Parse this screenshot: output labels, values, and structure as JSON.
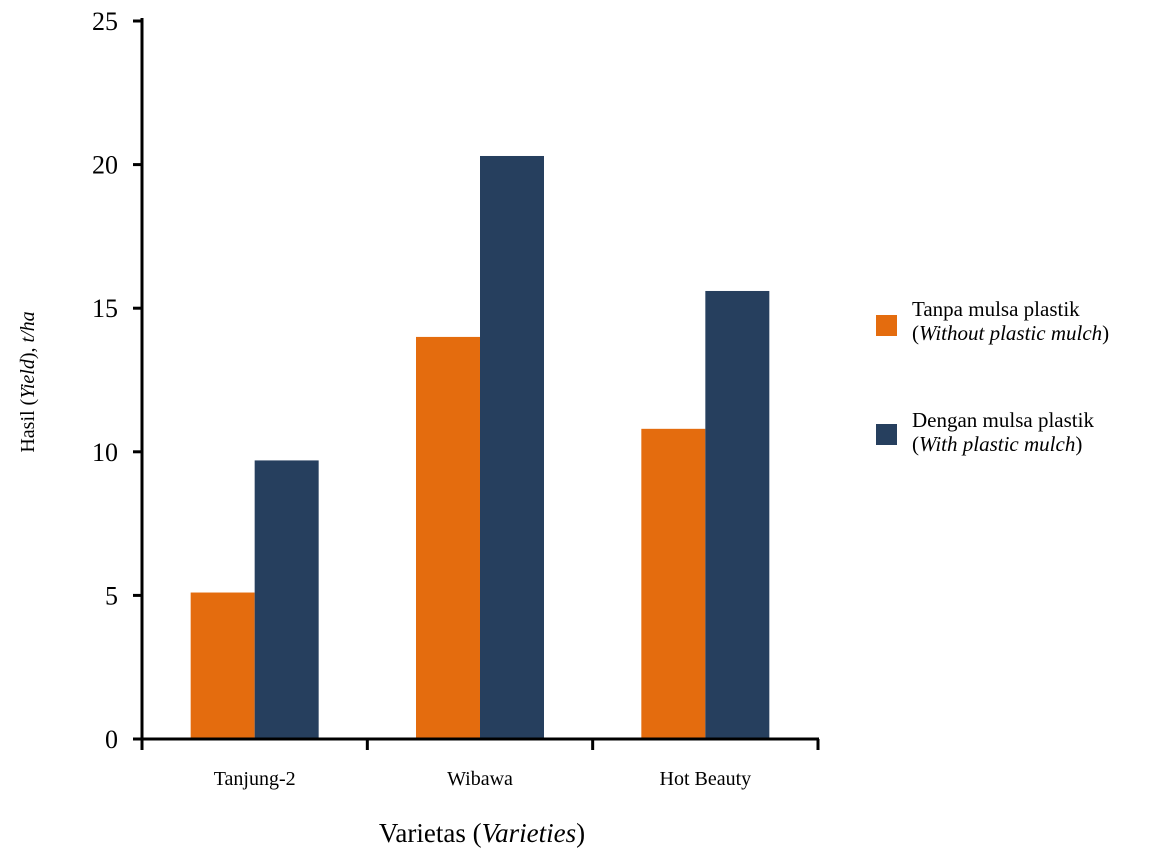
{
  "chart_data": {
    "type": "bar",
    "categories": [
      "Tanjung-2",
      "Wibawa",
      "Hot Beauty"
    ],
    "series": [
      {
        "name": "Tanpa mulsa plastik",
        "name_en": "Without plastic mulch",
        "color": "#e46c0e",
        "values": [
          5.1,
          14.0,
          10.8
        ]
      },
      {
        "name": "Dengan mulsa plastik",
        "name_en": "With plastic mulch",
        "color": "#263f5e",
        "values": [
          9.7,
          20.3,
          15.6
        ]
      }
    ],
    "xlabel": "Varietas",
    "xlabel_en": "Varieties",
    "ylabel": "Hasil",
    "ylabel_en": "Yield",
    "ylabel_unit": "t/ha",
    "ylim": [
      0,
      25
    ],
    "yticks": [
      0,
      5,
      10,
      15,
      20,
      25
    ],
    "grid": false,
    "legend_position": "right"
  }
}
